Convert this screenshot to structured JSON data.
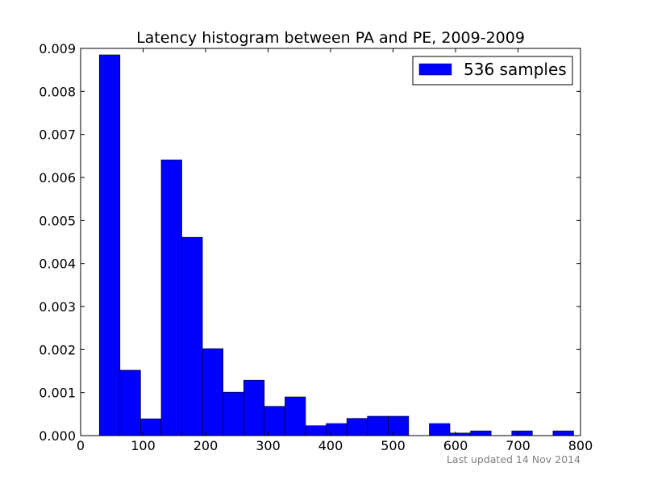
{
  "chart_data": {
    "type": "bar",
    "title": "Latency histogram between PA and PE, 2009-2009",
    "xlabel": "",
    "ylabel": "",
    "xlim": [
      0,
      800
    ],
    "ylim": [
      0,
      0.009
    ],
    "grid": false,
    "legend_placement": "top-right",
    "xticks": [
      0,
      100,
      200,
      300,
      400,
      500,
      600,
      700,
      800
    ],
    "yticks": [
      0.0,
      0.001,
      0.002,
      0.003,
      0.004,
      0.005,
      0.006,
      0.007,
      0.008,
      0.009
    ],
    "xtick_labels": [
      "0",
      "100",
      "200",
      "300",
      "400",
      "500",
      "600",
      "700",
      "800"
    ],
    "ytick_labels": [
      "0.000",
      "0.001",
      "0.002",
      "0.003",
      "0.004",
      "0.005",
      "0.006",
      "0.007",
      "0.008",
      "0.009"
    ],
    "bin_edges": [
      30,
      63,
      96,
      129,
      162,
      195,
      228,
      261,
      294,
      327,
      360,
      393,
      426,
      459,
      492,
      525,
      558,
      591,
      624,
      657,
      690,
      723,
      756,
      789
    ],
    "series": [
      {
        "name": "536 samples",
        "color": "#0000ff",
        "values": [
          0.00885,
          0.00152,
          0.00039,
          0.00641,
          0.00461,
          0.00202,
          0.00101,
          0.00129,
          0.00068,
          0.0009,
          0.00023,
          0.00028,
          0.0004,
          0.00045,
          0.00045,
          0.0,
          0.00028,
          6e-05,
          0.00011,
          0.0,
          0.00011,
          0.0,
          0.00011
        ]
      }
    ]
  },
  "footer": {
    "note": "Last updated 14 Nov 2014"
  }
}
